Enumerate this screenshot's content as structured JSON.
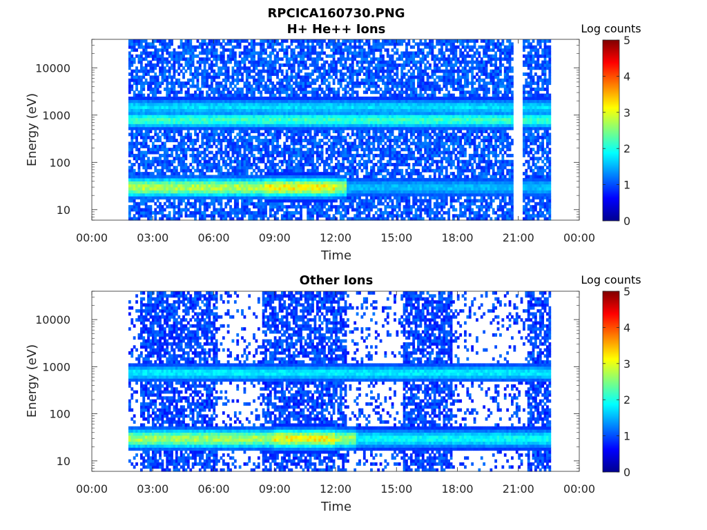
{
  "figure_title": "RPCICA160730.PNG",
  "colorbar": {
    "label": "Log counts",
    "ticks": [
      "0",
      "1",
      "2",
      "3",
      "4",
      "5"
    ],
    "colormap": "jet"
  },
  "chart_data": [
    {
      "type": "heatmap",
      "title": "H+ He++ Ions",
      "xlabel": "Time",
      "ylabel": "Energy (eV)",
      "x_ticks": [
        "00:00",
        "03:00",
        "06:00",
        "09:00",
        "12:00",
        "15:00",
        "18:00",
        "21:00",
        "00:00"
      ],
      "x_range_hours": [
        0,
        24
      ],
      "y_scale": "log",
      "y_ticks": [
        10,
        100,
        1000,
        10000
      ],
      "y_range": [
        6,
        40000
      ],
      "color_range": [
        0,
        5
      ],
      "data_coverage_hours": [
        1.8,
        22.6
      ],
      "gaps_hours": [
        [
          20.8,
          21.2
        ]
      ],
      "bands": [
        {
          "energy_eV": 30,
          "time_hours": [
            1.8,
            12.5
          ],
          "level": 2.6,
          "peak_hours": [
            8.5,
            12.0
          ],
          "peak_level": 3.0
        },
        {
          "energy_eV": 30,
          "time_hours": [
            12.5,
            22.6
          ],
          "level": 1.2
        },
        {
          "energy_eV": 800,
          "time_hours": [
            1.8,
            22.6
          ],
          "level": 1.9
        },
        {
          "energy_eV": 1500,
          "time_hours": [
            1.8,
            22.6
          ],
          "level": 1.4
        }
      ],
      "background_level": 0.3
    },
    {
      "type": "heatmap",
      "title": "Other Ions",
      "xlabel": "Time",
      "ylabel": "Energy (eV)",
      "x_ticks": [
        "00:00",
        "03:00",
        "06:00",
        "09:00",
        "12:00",
        "15:00",
        "18:00",
        "21:00",
        "00:00"
      ],
      "x_range_hours": [
        0,
        24
      ],
      "y_scale": "log",
      "y_ticks": [
        10,
        100,
        1000,
        10000
      ],
      "y_range": [
        6,
        40000
      ],
      "color_range": [
        0,
        5
      ],
      "data_coverage_hours": [
        1.8,
        22.6
      ],
      "dense_intervals_hours": [
        [
          2.4,
          6.2
        ],
        [
          8.4,
          12.6
        ],
        [
          15.3,
          17.7
        ],
        [
          21.5,
          22.6
        ]
      ],
      "bands": [
        {
          "energy_eV": 30,
          "time_hours": [
            1.8,
            13.0
          ],
          "level": 2.5,
          "peak_hours": [
            9.0,
            12.0
          ],
          "peak_level": 3.0
        },
        {
          "energy_eV": 30,
          "time_hours": [
            13.0,
            22.6
          ],
          "level": 1.6
        },
        {
          "energy_eV": 750,
          "time_hours": [
            1.8,
            22.6
          ],
          "level": 1.5
        }
      ],
      "background_level": 0.2
    }
  ]
}
